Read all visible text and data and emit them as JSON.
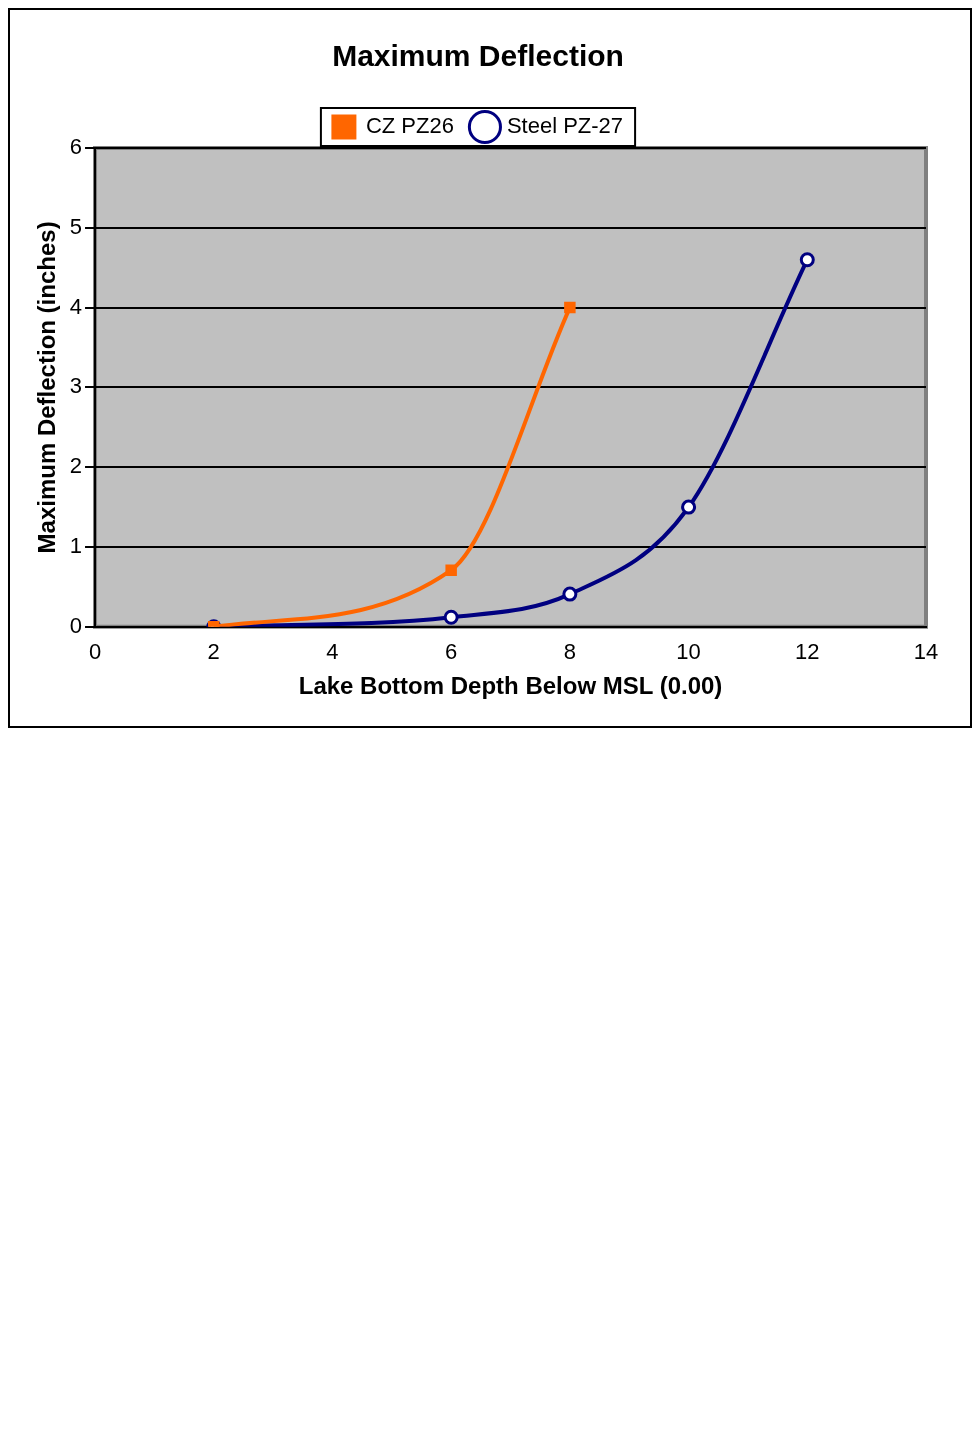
{
  "chart_data": {
    "type": "line",
    "title": "Maximum Deflection",
    "xlabel": "Lake Bottom Depth Below MSL (0.00)",
    "ylabel": "Maximum Deflection (inches)",
    "series": [
      {
        "name": "CZ PZ26",
        "color": "#ff6600",
        "marker": "square",
        "x": [
          2,
          6,
          8
        ],
        "values": [
          0,
          0.71,
          4.0
        ]
      },
      {
        "name": "Steel PZ-27",
        "color": "#000080",
        "marker": "circle",
        "x": [
          2,
          6,
          8,
          10,
          12
        ],
        "values": [
          0,
          0.12,
          0.41,
          1.5,
          4.6
        ]
      }
    ],
    "xlim": [
      0,
      14
    ],
    "xticks": [
      0,
      2,
      4,
      6,
      8,
      10,
      12,
      14
    ],
    "ylim": [
      0,
      6
    ],
    "yticks": [
      0,
      1,
      2,
      3,
      4,
      5,
      6
    ],
    "grid": "y",
    "legend": "top"
  }
}
